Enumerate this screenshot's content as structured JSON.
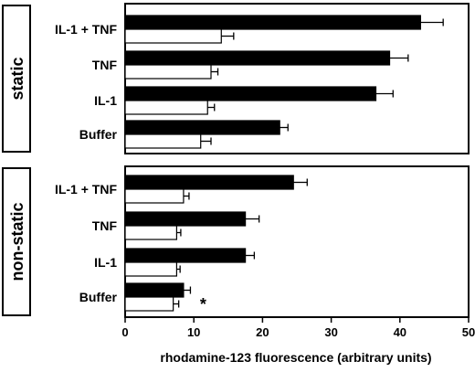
{
  "chart_data": {
    "type": "bar",
    "orientation": "horizontal",
    "xlabel": "rhodamine-123 fluorescence (arbitrary units)",
    "xlim": [
      0,
      50
    ],
    "xticks": [
      "0",
      "10",
      "20",
      "30",
      "40",
      "50"
    ],
    "series_colors": [
      "#000000",
      "#ffffff"
    ],
    "panels": [
      {
        "group_label": "static",
        "categories": [
          "IL-1 + TNF",
          "TNF",
          "IL-1",
          "Buffer"
        ],
        "series": [
          {
            "values": [
              43.0,
              38.5,
              36.5,
              22.5
            ],
            "errors": [
              3.3,
              2.7,
              2.5,
              1.2
            ]
          },
          {
            "values": [
              14.0,
              12.5,
              12.0,
              11.0
            ],
            "errors": [
              1.8,
              1.0,
              1.0,
              1.5
            ]
          }
        ],
        "annotation": ""
      },
      {
        "group_label": "non-static",
        "categories": [
          "IL-1 + TNF",
          "TNF",
          "IL-1",
          "Buffer"
        ],
        "series": [
          {
            "values": [
              24.5,
              17.5,
              17.5,
              8.5
            ],
            "errors": [
              2.0,
              2.0,
              1.3,
              1.0
            ]
          },
          {
            "values": [
              8.5,
              7.5,
              7.5,
              7.0
            ],
            "errors": [
              0.8,
              0.6,
              0.5,
              0.8
            ]
          }
        ],
        "annotation": "*"
      }
    ]
  }
}
